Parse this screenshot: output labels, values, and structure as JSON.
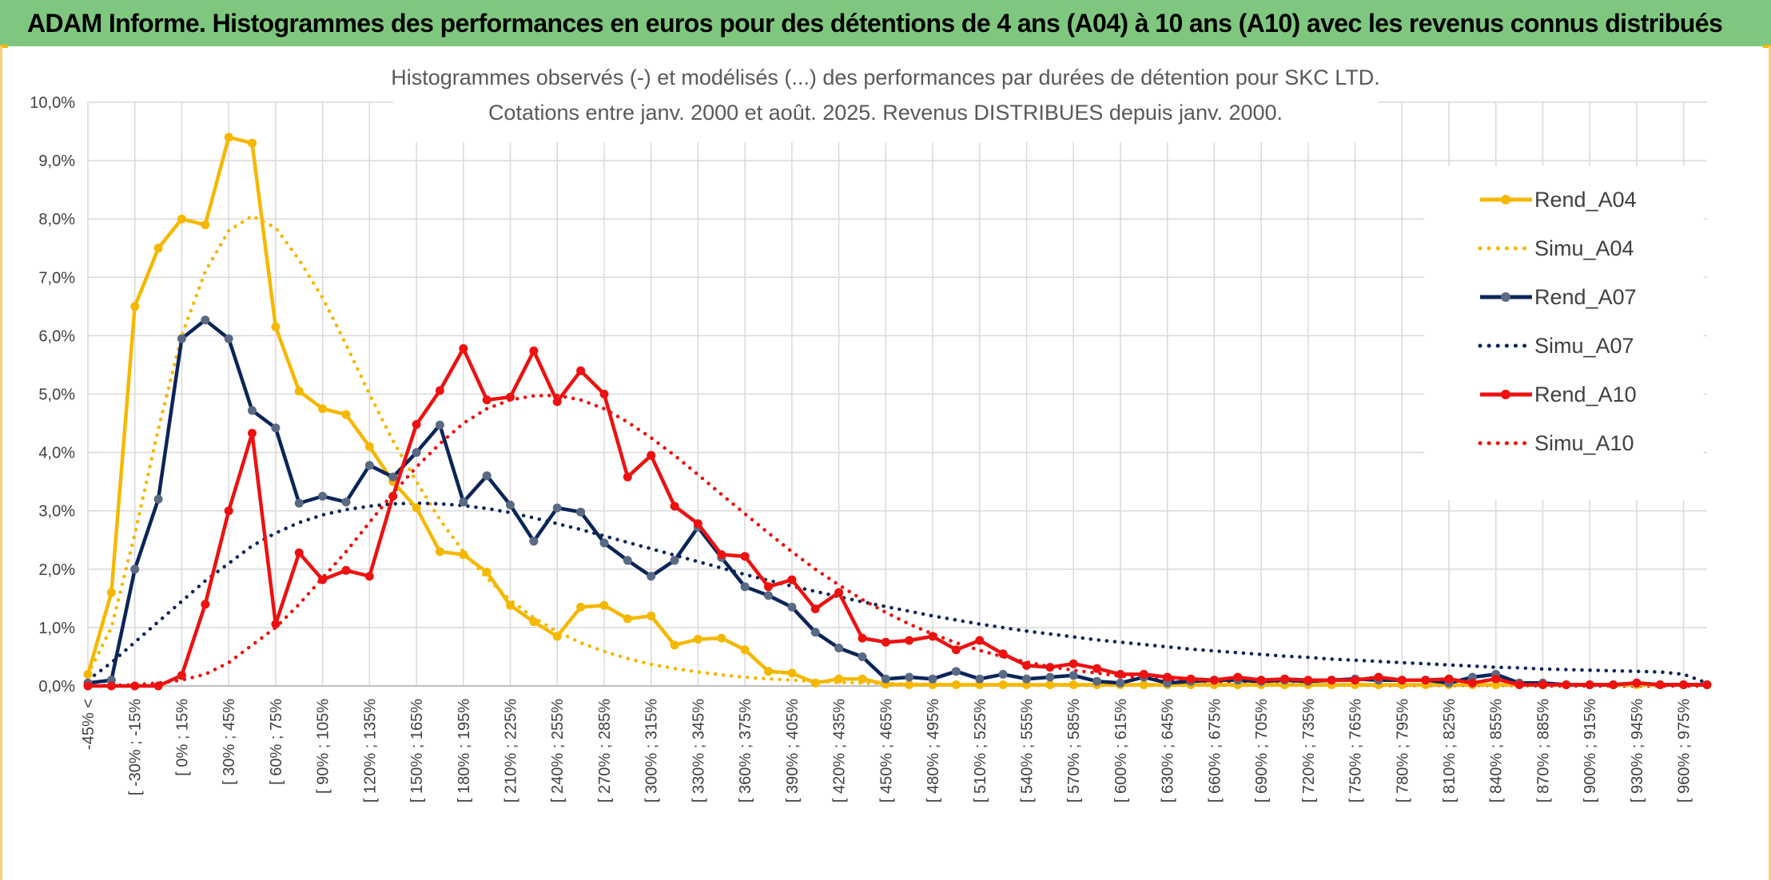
{
  "banner": {
    "title": "ADAM Informe. Histogrammes des performances en euros pour des détentions de 4 ans (A04) à 10 ans (A10) avec les revenus connus distribués"
  },
  "colors": {
    "banner_bg": "#7fc77f",
    "A04": "#f5b800",
    "A07": "#0b2559",
    "A10": "#ee1111",
    "marker_A07": "#5a6a84",
    "grid": "#d9d9d9"
  },
  "chart_data": {
    "type": "line",
    "title_line1": "Histogrammes observés (-) et modélisés (...) des performances par durées de détention pour SKC LTD.",
    "title_line2": "Cotations entre janv. 2000 et août. 2025. Revenus DISTRIBUES depuis janv. 2000.",
    "ylim": [
      0,
      10
    ],
    "y_ticks": [
      "0,0%",
      "1,0%",
      "2,0%",
      "3,0%",
      "4,0%",
      "5,0%",
      "6,0%",
      "7,0%",
      "8,0%",
      "9,0%",
      "10,0%"
    ],
    "grid": true,
    "legend_position": "right",
    "x_labels": [
      "-45% <",
      "[ -30% ; -15%",
      "[ 0% ; 15%",
      "[ 30% ; 45%",
      "[ 60% ; 75%",
      "[ 90% ; 105%",
      "[ 120% ; 135%",
      "[ 150% ; 165%",
      "[ 180% ; 195%",
      "[ 210% ; 225%",
      "[ 240% ; 255%",
      "[ 270% ; 285%",
      "[ 300% ; 315%",
      "[ 330% ; 345%",
      "[ 360% ; 375%",
      "[ 390% ; 405%",
      "[ 420% ; 435%",
      "[ 450% ; 465%",
      "[ 480% ; 495%",
      "[ 510% ; 525%",
      "[ 540% ; 555%",
      "[ 570% ; 585%",
      "[ 600% ; 615%",
      "[ 630% ; 645%",
      "[ 660% ; 675%",
      "[ 690% ; 705%",
      "[ 720% ; 735%",
      "[ 750% ; 765%",
      "[ 780% ; 795%",
      "[ 810% ; 825%",
      "[ 840% ; 855%",
      "[ 870% ; 885%",
      "[ 900% ; 915%",
      "[ 930% ; 945%",
      "[ 960% ; 975%"
    ],
    "series": [
      {
        "name": "Rend_A04",
        "style": "solid",
        "color": "#f5b800",
        "marker": true,
        "values": [
          0.2,
          1.6,
          6.5,
          7.5,
          8.0,
          7.9,
          9.4,
          9.3,
          6.15,
          5.05,
          4.75,
          4.65,
          4.1,
          3.5,
          3.05,
          2.3,
          2.25,
          1.95,
          1.38,
          1.1,
          0.85,
          1.35,
          1.38,
          1.15,
          1.2,
          0.7,
          0.8,
          0.82,
          0.62,
          0.25,
          0.22,
          0.05,
          0.12,
          0.12,
          0.03,
          0.02,
          0.02,
          0.02,
          0.02,
          0.02,
          0.02,
          0.02,
          0.02,
          0.02,
          0.02,
          0.02,
          0.02,
          0.02,
          0.02,
          0.02,
          0.02,
          0.02,
          0.02,
          0.02,
          0.02,
          0.02,
          0.02,
          0.02,
          0.02,
          0.02,
          0.02,
          0.02,
          0.02,
          0.02,
          0.02,
          0.02,
          0.02,
          0.02,
          0.02,
          0.02
        ]
      },
      {
        "name": "Simu_A04",
        "style": "dotted",
        "color": "#f5b800",
        "marker": false,
        "values": [
          0.2,
          1.0,
          2.6,
          4.4,
          6.0,
          7.1,
          7.8,
          8.05,
          7.85,
          7.3,
          6.65,
          5.85,
          5.0,
          4.2,
          3.5,
          2.85,
          2.3,
          1.85,
          1.47,
          1.17,
          0.93,
          0.74,
          0.59,
          0.47,
          0.37,
          0.3,
          0.24,
          0.19,
          0.15,
          0.12,
          0.1,
          0.08,
          0.06,
          0.05,
          0.04,
          0.03,
          0.03,
          0.02,
          0.02,
          0.02,
          0.01,
          0.01,
          0.01,
          0.01,
          0.01,
          0.01,
          0.01,
          0.01,
          0.01,
          0.01,
          0.01,
          0.01,
          0.01,
          0.01,
          0.01,
          0.01,
          0.01,
          0.01,
          0.01,
          0.01,
          0.01,
          0.01,
          0.01,
          0.01,
          0.01,
          0.01,
          0.01,
          0.01,
          0.01,
          0.01
        ]
      },
      {
        "name": "Rend_A07",
        "style": "solid",
        "color": "#0b2559",
        "marker": true,
        "values": [
          0.05,
          0.1,
          2.0,
          3.2,
          5.95,
          6.27,
          5.95,
          4.72,
          4.42,
          3.13,
          3.25,
          3.15,
          3.78,
          3.58,
          4.0,
          4.47,
          3.15,
          3.6,
          3.1,
          2.48,
          3.05,
          2.98,
          2.45,
          2.15,
          1.88,
          2.15,
          2.72,
          2.2,
          1.7,
          1.55,
          1.35,
          0.92,
          0.65,
          0.5,
          0.12,
          0.15,
          0.12,
          0.25,
          0.12,
          0.2,
          0.12,
          0.15,
          0.18,
          0.08,
          0.05,
          0.15,
          0.05,
          0.08,
          0.1,
          0.1,
          0.08,
          0.1,
          0.08,
          0.1,
          0.12,
          0.1,
          0.1,
          0.1,
          0.05,
          0.15,
          0.2,
          0.05,
          0.05,
          0.02,
          0.02,
          0.02,
          0.05,
          0.02,
          0.02,
          0.02
        ]
      },
      {
        "name": "Simu_A07",
        "style": "dotted",
        "color": "#0b2559",
        "marker": false,
        "values": [
          0.1,
          0.4,
          0.75,
          1.1,
          1.45,
          1.8,
          2.1,
          2.4,
          2.62,
          2.8,
          2.93,
          3.02,
          3.08,
          3.12,
          3.13,
          3.12,
          3.09,
          3.04,
          2.97,
          2.88,
          2.78,
          2.68,
          2.57,
          2.46,
          2.35,
          2.24,
          2.13,
          2.02,
          1.91,
          1.81,
          1.71,
          1.62,
          1.53,
          1.44,
          1.36,
          1.28,
          1.2,
          1.13,
          1.06,
          1.0,
          0.94,
          0.89,
          0.84,
          0.79,
          0.75,
          0.71,
          0.67,
          0.63,
          0.6,
          0.57,
          0.54,
          0.51,
          0.49,
          0.46,
          0.44,
          0.42,
          0.4,
          0.38,
          0.36,
          0.34,
          0.32,
          0.31,
          0.29,
          0.28,
          0.27,
          0.26,
          0.25,
          0.24,
          0.2,
          0.05
        ]
      },
      {
        "name": "Rend_A10",
        "style": "solid",
        "color": "#ee1111",
        "marker": true,
        "values": [
          0.0,
          0.0,
          0.0,
          0.0,
          0.18,
          1.4,
          3.0,
          4.33,
          1.06,
          2.28,
          1.82,
          1.98,
          1.88,
          3.25,
          4.48,
          5.06,
          5.78,
          4.9,
          4.95,
          5.74,
          4.87,
          5.4,
          5.0,
          3.58,
          3.95,
          3.08,
          2.78,
          2.25,
          2.22,
          1.7,
          1.82,
          1.32,
          1.6,
          0.82,
          0.75,
          0.78,
          0.85,
          0.62,
          0.78,
          0.55,
          0.35,
          0.32,
          0.38,
          0.3,
          0.2,
          0.2,
          0.15,
          0.12,
          0.1,
          0.15,
          0.1,
          0.12,
          0.1,
          0.1,
          0.1,
          0.15,
          0.1,
          0.1,
          0.12,
          0.05,
          0.12,
          0.02,
          0.02,
          0.02,
          0.02,
          0.02,
          0.05,
          0.02,
          0.02,
          0.02
        ]
      },
      {
        "name": "Simu_A10",
        "style": "dotted",
        "color": "#ee1111",
        "marker": false,
        "values": [
          0.0,
          0.01,
          0.02,
          0.05,
          0.1,
          0.2,
          0.4,
          0.7,
          1.0,
          1.4,
          1.85,
          2.3,
          2.8,
          3.3,
          3.75,
          4.15,
          4.5,
          4.75,
          4.9,
          4.97,
          4.98,
          4.9,
          4.75,
          4.52,
          4.25,
          3.95,
          3.62,
          3.28,
          2.95,
          2.62,
          2.3,
          2.0,
          1.73,
          1.48,
          1.26,
          1.06,
          0.89,
          0.74,
          0.61,
          0.5,
          0.41,
          0.33,
          0.27,
          0.22,
          0.17,
          0.14,
          0.11,
          0.09,
          0.07,
          0.05,
          0.04,
          0.03,
          0.03,
          0.02,
          0.02,
          0.01,
          0.01,
          0.01,
          0.01,
          0.01,
          0.01,
          0.01,
          0.0,
          0.0,
          0.0,
          0.0,
          0.0,
          0.0,
          0.0,
          0.0
        ]
      }
    ]
  }
}
